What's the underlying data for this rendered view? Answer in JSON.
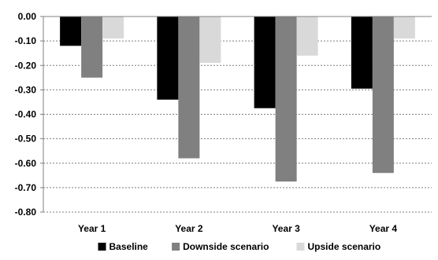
{
  "chart_data": {
    "type": "bar",
    "categories": [
      "Year 1",
      "Year 2",
      "Year 3",
      "Year 4"
    ],
    "series": [
      {
        "name": "Baseline",
        "color": "#000000",
        "values": [
          -0.12,
          -0.34,
          -0.375,
          -0.295
        ]
      },
      {
        "name": "Downside scenario",
        "color": "#808080",
        "values": [
          -0.25,
          -0.58,
          -0.675,
          -0.64
        ]
      },
      {
        "name": "Upside scenario",
        "color": "#d9d9d9",
        "values": [
          -0.09,
          -0.19,
          -0.16,
          -0.09
        ]
      }
    ],
    "yticks": [
      "0.00",
      "-0.10",
      "-0.20",
      "-0.30",
      "-0.40",
      "-0.50",
      "-0.60",
      "-0.70",
      "-0.80"
    ],
    "ylim": [
      -0.8,
      0
    ],
    "grid": true,
    "legend_position": "bottom"
  }
}
